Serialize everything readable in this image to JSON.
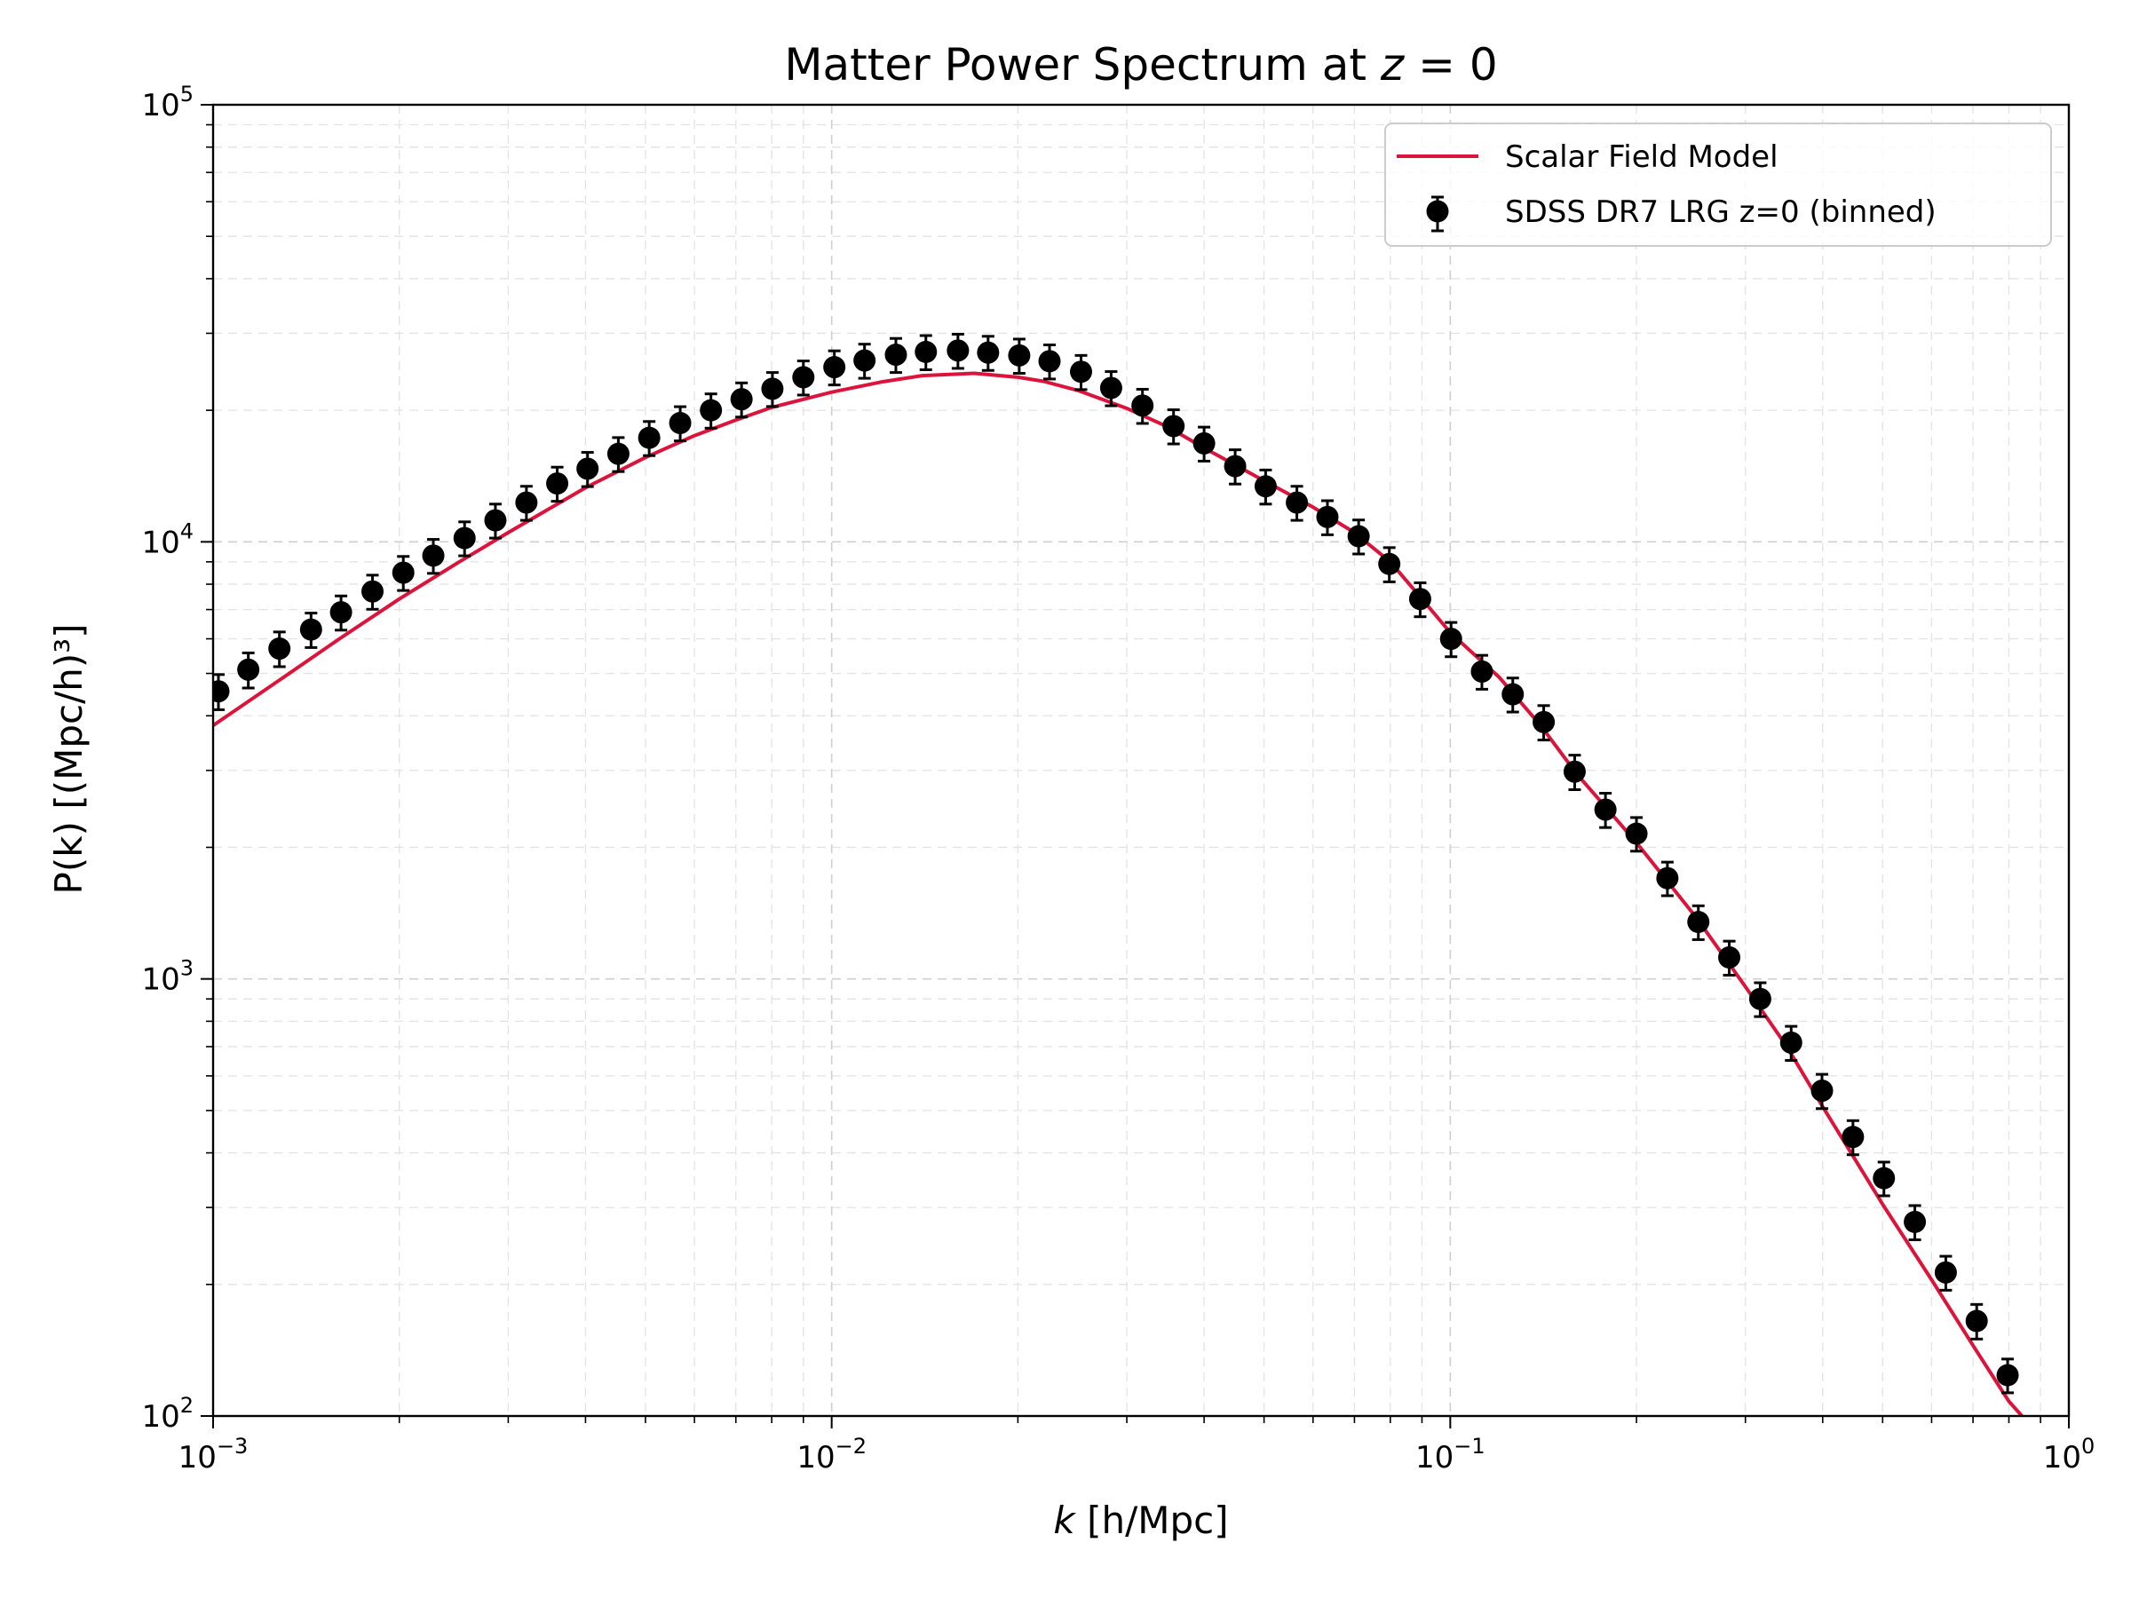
{
  "chart_data": {
    "type": "line",
    "title_main": "Matter Power Spectrum at ",
    "title_var": "z",
    "title_tail": " = 0",
    "xlabel_var": "k",
    "xlabel_text": " [h/Mpc]",
    "ylabel_text": "P(k) [(Mpc/h)³]",
    "xscale": "log",
    "yscale": "log",
    "xlim": [
      0.001,
      1
    ],
    "ylim": [
      100,
      100000
    ],
    "grid": true,
    "legend_position": "top-right",
    "x_ticks": [
      {
        "base": "10",
        "exp": "−3",
        "value": 0.001
      },
      {
        "base": "10",
        "exp": "−2",
        "value": 0.01
      },
      {
        "base": "10",
        "exp": "−1",
        "value": 0.1
      },
      {
        "base": "10",
        "exp": "0",
        "value": 1
      }
    ],
    "y_ticks": [
      {
        "base": "10",
        "exp": "2",
        "value": 100
      },
      {
        "base": "10",
        "exp": "3",
        "value": 1000
      },
      {
        "base": "10",
        "exp": "4",
        "value": 10000
      },
      {
        "base": "10",
        "exp": "5",
        "value": 100000
      }
    ],
    "series": [
      {
        "name": "Scalar Field Model",
        "kind": "line",
        "color": "#dc143c",
        "points": [
          [
            0.001,
            3800
          ],
          [
            0.0013,
            4900
          ],
          [
            0.0016,
            6000
          ],
          [
            0.002,
            7400
          ],
          [
            0.0025,
            9000
          ],
          [
            0.003,
            10500
          ],
          [
            0.004,
            13300
          ],
          [
            0.005,
            15600
          ],
          [
            0.006,
            17500
          ],
          [
            0.007,
            19000
          ],
          [
            0.008,
            20300
          ],
          [
            0.01,
            22000
          ],
          [
            0.012,
            23200
          ],
          [
            0.014,
            24000
          ],
          [
            0.017,
            24300
          ],
          [
            0.02,
            23800
          ],
          [
            0.022,
            23300
          ],
          [
            0.025,
            22200
          ],
          [
            0.03,
            20200
          ],
          [
            0.035,
            18300
          ],
          [
            0.04,
            16400
          ],
          [
            0.05,
            13800
          ],
          [
            0.06,
            12000
          ],
          [
            0.07,
            10500
          ],
          [
            0.08,
            9000
          ],
          [
            0.09,
            7400
          ],
          [
            0.1,
            6200
          ],
          [
            0.12,
            4900
          ],
          [
            0.14,
            3800
          ],
          [
            0.16,
            2950
          ],
          [
            0.2,
            2050
          ],
          [
            0.25,
            1380
          ],
          [
            0.3,
            960
          ],
          [
            0.35,
            700
          ],
          [
            0.4,
            510
          ],
          [
            0.5,
            305
          ],
          [
            0.6,
            205
          ],
          [
            0.7,
            145
          ],
          [
            0.8,
            108
          ],
          [
            0.84,
            100
          ]
        ]
      },
      {
        "name": "SDSS DR7 LRG z=0 (binned)",
        "kind": "errorbar",
        "color": "#000000",
        "points": [
          [
            0.00102,
            4550,
            420
          ],
          [
            0.00114,
            5100,
            470
          ],
          [
            0.00128,
            5700,
            520
          ],
          [
            0.00144,
            6300,
            570
          ],
          [
            0.00161,
            6900,
            620
          ],
          [
            0.00181,
            7700,
            690
          ],
          [
            0.00203,
            8500,
            760
          ],
          [
            0.00227,
            9300,
            830
          ],
          [
            0.00255,
            10200,
            910
          ],
          [
            0.00286,
            11200,
            1000
          ],
          [
            0.00321,
            12300,
            1100
          ],
          [
            0.0036,
            13600,
            1220
          ],
          [
            0.00403,
            14700,
            1320
          ],
          [
            0.00452,
            15900,
            1420
          ],
          [
            0.00507,
            17300,
            1550
          ],
          [
            0.00569,
            18700,
            1680
          ],
          [
            0.00638,
            20000,
            1800
          ],
          [
            0.00715,
            21200,
            1900
          ],
          [
            0.00802,
            22400,
            2000
          ],
          [
            0.009,
            23800,
            2130
          ],
          [
            0.0101,
            25100,
            2250
          ],
          [
            0.0113,
            26000,
            2330
          ],
          [
            0.0127,
            26800,
            2400
          ],
          [
            0.0142,
            27200,
            2440
          ],
          [
            0.016,
            27400,
            2460
          ],
          [
            0.0179,
            27100,
            2430
          ],
          [
            0.0201,
            26700,
            2400
          ],
          [
            0.0225,
            25900,
            2320
          ],
          [
            0.0253,
            24500,
            2200
          ],
          [
            0.0283,
            22500,
            2020
          ],
          [
            0.0318,
            20500,
            1840
          ],
          [
            0.0357,
            18400,
            1650
          ],
          [
            0.04,
            16800,
            1500
          ],
          [
            0.0449,
            14900,
            1340
          ],
          [
            0.0503,
            13400,
            1200
          ],
          [
            0.0565,
            12300,
            1100
          ],
          [
            0.0633,
            11400,
            1020
          ],
          [
            0.0711,
            10300,
            920
          ],
          [
            0.0797,
            8900,
            800
          ],
          [
            0.0894,
            7400,
            660
          ],
          [
            0.1003,
            6000,
            540
          ],
          [
            0.1125,
            5050,
            450
          ],
          [
            0.1262,
            4480,
            400
          ],
          [
            0.1416,
            3870,
            350
          ],
          [
            0.1589,
            2980,
            270
          ],
          [
            0.1782,
            2440,
            220
          ],
          [
            0.2,
            2150,
            190
          ],
          [
            0.2244,
            1700,
            150
          ],
          [
            0.2518,
            1350,
            120
          ],
          [
            0.2825,
            1120,
            100
          ],
          [
            0.317,
            900,
            80
          ],
          [
            0.3557,
            715,
            64
          ],
          [
            0.399,
            555,
            50
          ],
          [
            0.4477,
            435,
            39
          ],
          [
            0.5024,
            350,
            31
          ],
          [
            0.5637,
            278,
            25
          ],
          [
            0.6325,
            213,
            19
          ],
          [
            0.7096,
            165,
            15
          ],
          [
            0.7962,
            124,
            11
          ]
        ]
      }
    ]
  }
}
